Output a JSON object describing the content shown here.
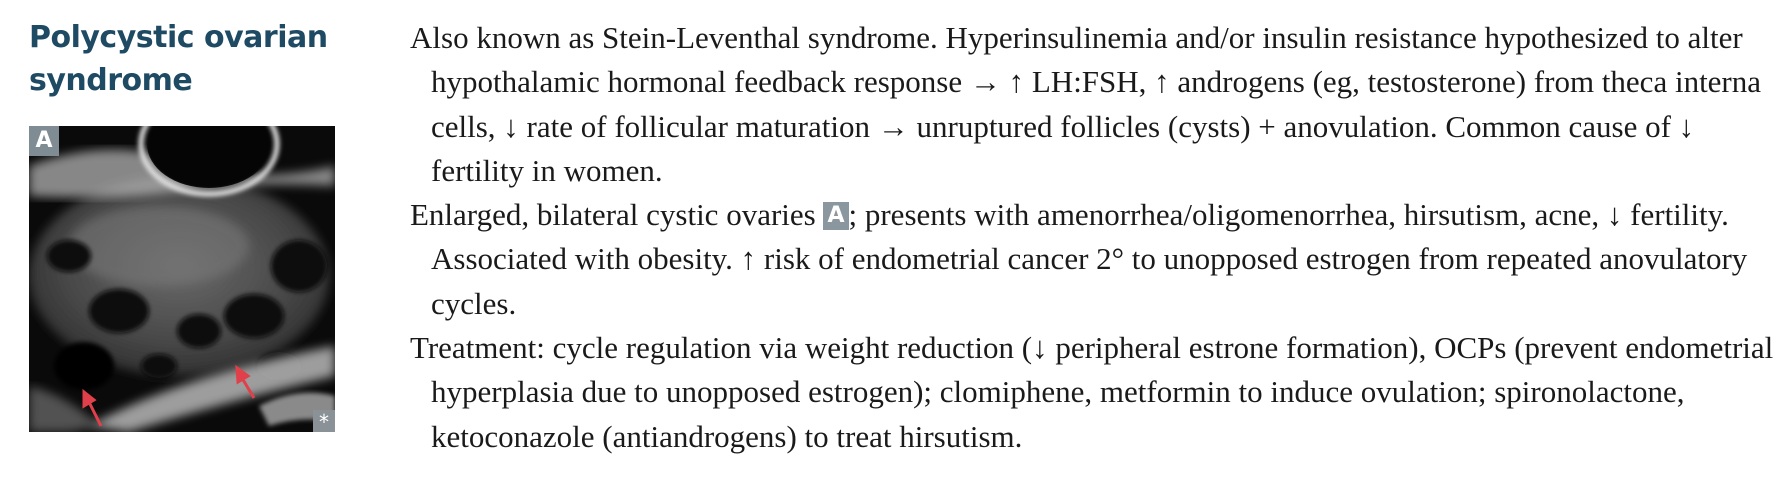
{
  "title": "Polycystic ovarian syndrome",
  "figure": {
    "label": "A",
    "corner_mark": "*",
    "arrow_color": "#e0404a"
  },
  "paragraphs": [
    {
      "text": "Also known as Stein-Leventhal syndrome. Hyperinsulinemia and/or insulin resistance hypothesized to alter hypothalamic hormonal feedback response → ↑ LH:FSH, ↑ androgens (eg, testosterone) from theca interna cells, ↓ rate of follicular maturation → unruptured follicles (cysts) + anovulation. Common cause of ↓ fertility in women."
    },
    {
      "text_before": "Enlarged, bilateral cystic ovaries ",
      "badge": "A",
      "text_after": "; presents with amenorrhea/oligomenorrhea, hirsutism, acne, ↓ fertility. Associated with obesity. ↑ risk of endometrial cancer 2° to unopposed estrogen from repeated anovulatory cycles."
    },
    {
      "text": "Treatment: cycle regulation via weight reduction (↓ peripheral estrone formation), OCPs (prevent endometrial hyperplasia due to unopposed estrogen); clomiphene, metformin to induce ovulation; spironolactone, ketoconazole (antiandrogens) to treat hirsutism."
    }
  ]
}
